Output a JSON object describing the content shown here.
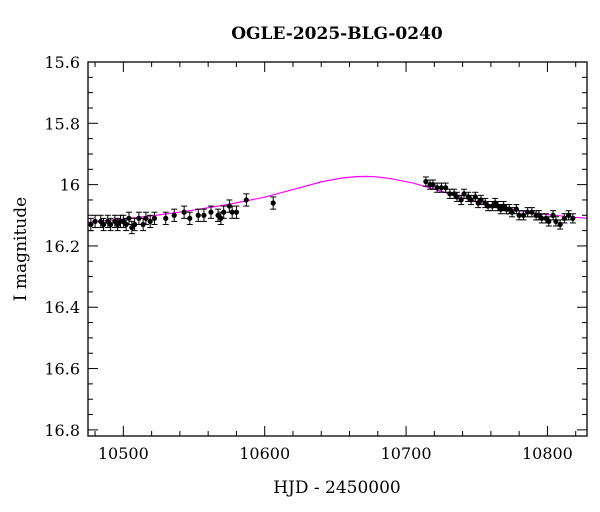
{
  "chart_data": {
    "type": "scatter",
    "title": "OGLE-2025-BLG-0240",
    "xlabel": "HJD - 2450000",
    "ylabel": "I magnitude",
    "xlim": [
      10475,
      10828
    ],
    "ylim": [
      16.82,
      15.6
    ],
    "y_inverted": true,
    "x_ticks_major": [
      10500,
      10600,
      10700,
      10800
    ],
    "x_tick_labels": [
      "10500",
      "10600",
      "10700",
      "10800"
    ],
    "y_ticks_major": [
      15.6,
      15.8,
      16,
      16.2,
      16.4,
      16.6,
      16.8
    ],
    "y_tick_labels": [
      "15.6",
      "15.8",
      "16",
      "16.2",
      "16.4",
      "16.6",
      "16.8"
    ],
    "grid": false,
    "colors": {
      "data": "#000000",
      "model": "#ff00ff"
    },
    "model": {
      "name": "",
      "x": [
        10475,
        10500,
        10525,
        10550,
        10575,
        10600,
        10620,
        10640,
        10655,
        10665,
        10672,
        10680,
        10690,
        10705,
        10720,
        10740,
        10760,
        10780,
        10800,
        10828
      ],
      "y": [
        16.123,
        16.112,
        16.099,
        16.083,
        16.064,
        16.041,
        16.016,
        15.991,
        15.978,
        15.974,
        15.973,
        15.975,
        15.981,
        15.995,
        16.015,
        16.043,
        16.067,
        16.085,
        16.098,
        16.11
      ]
    },
    "series": [
      {
        "name": "",
        "x": [
          10477,
          10480,
          10484,
          10486,
          10489,
          10491,
          10494,
          10496,
          10498,
          10500,
          10502,
          10504,
          10506,
          10508,
          10511,
          10514,
          10516,
          10519,
          10522,
          10530,
          10536,
          10543,
          10547,
          10553,
          10557,
          10562,
          10567,
          10569,
          10571,
          10575,
          10577,
          10580,
          10587,
          10606,
          10714,
          10717,
          10719,
          10722,
          10725,
          10728,
          10731,
          10734,
          10736,
          10739,
          10741,
          10744,
          10746,
          10749,
          10751,
          10753,
          10756,
          10758,
          10761,
          10763,
          10765,
          10767,
          10769,
          10771,
          10773,
          10775,
          10778,
          10780,
          10783,
          10786,
          10789,
          10792,
          10794,
          10796,
          10799,
          10801,
          10804,
          10806,
          10809,
          10812,
          10815,
          10818
        ],
        "y": [
          16.13,
          16.12,
          16.12,
          16.13,
          16.12,
          16.13,
          16.12,
          16.13,
          16.12,
          16.12,
          16.13,
          16.11,
          16.14,
          16.13,
          16.11,
          16.13,
          16.11,
          16.12,
          16.11,
          16.11,
          16.1,
          16.09,
          16.11,
          16.1,
          16.1,
          16.09,
          16.1,
          16.11,
          16.09,
          16.07,
          16.09,
          16.09,
          16.05,
          16.06,
          15.99,
          16.0,
          16.0,
          16.01,
          16.01,
          16.01,
          16.03,
          16.03,
          16.04,
          16.05,
          16.03,
          16.04,
          16.05,
          16.04,
          16.06,
          16.05,
          16.06,
          16.07,
          16.07,
          16.06,
          16.07,
          16.08,
          16.07,
          16.08,
          16.08,
          16.09,
          16.08,
          16.1,
          16.1,
          16.09,
          16.09,
          16.1,
          16.1,
          16.11,
          16.11,
          16.12,
          16.1,
          16.12,
          16.13,
          16.11,
          16.1,
          16.11
        ],
        "err": [
          0.02,
          0.02,
          0.02,
          0.02,
          0.02,
          0.02,
          0.02,
          0.02,
          0.02,
          0.02,
          0.02,
          0.02,
          0.02,
          0.02,
          0.02,
          0.02,
          0.02,
          0.02,
          0.02,
          0.02,
          0.02,
          0.02,
          0.02,
          0.02,
          0.02,
          0.02,
          0.02,
          0.02,
          0.02,
          0.02,
          0.02,
          0.02,
          0.02,
          0.02,
          0.015,
          0.015,
          0.015,
          0.015,
          0.015,
          0.015,
          0.015,
          0.015,
          0.015,
          0.015,
          0.015,
          0.015,
          0.015,
          0.015,
          0.015,
          0.015,
          0.015,
          0.015,
          0.015,
          0.015,
          0.015,
          0.015,
          0.015,
          0.015,
          0.015,
          0.015,
          0.015,
          0.015,
          0.015,
          0.015,
          0.015,
          0.015,
          0.015,
          0.015,
          0.015,
          0.015,
          0.015,
          0.015,
          0.015,
          0.015,
          0.015,
          0.015
        ]
      }
    ]
  }
}
